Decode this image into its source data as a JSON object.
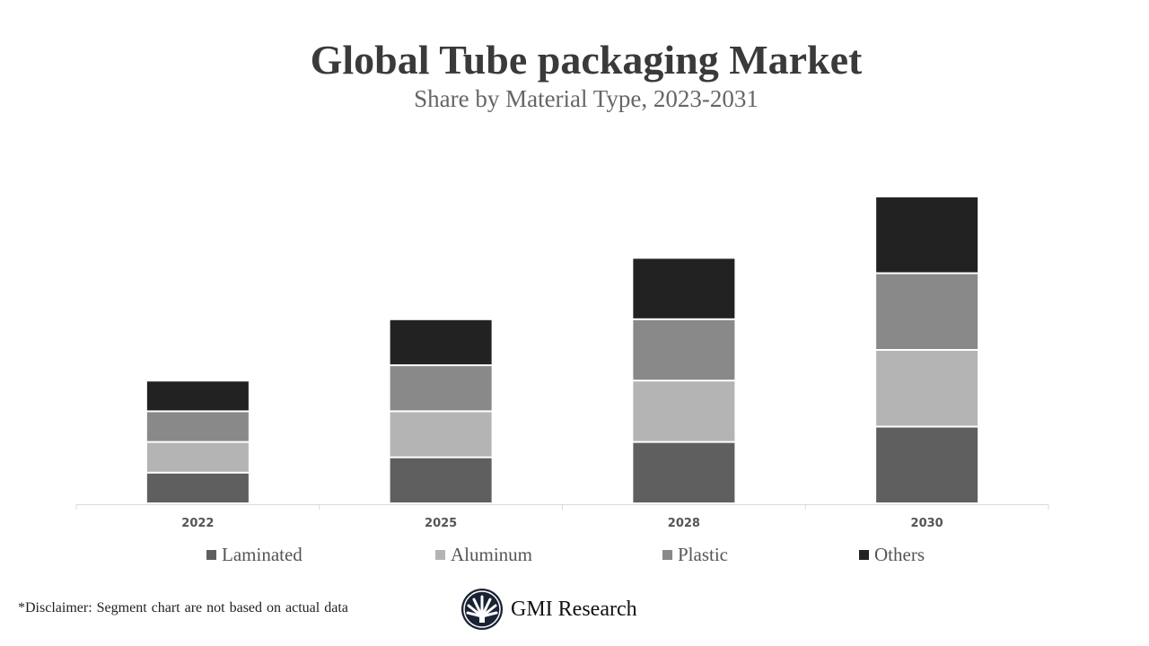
{
  "chart_data": {
    "type": "bar",
    "stacked": true,
    "title": "Global Tube packaging Market",
    "subtitle": "Share by Material Type, 2023-2031",
    "categories": [
      "2022",
      "2025",
      "2028",
      "2030"
    ],
    "series": [
      {
        "name": "Laminated",
        "values": [
          1,
          1.5,
          2,
          2.5
        ],
        "color": "#5f5f5f"
      },
      {
        "name": "Aluminum",
        "values": [
          1,
          1.5,
          2,
          2.5
        ],
        "color": "#b4b4b4"
      },
      {
        "name": "Plastic",
        "values": [
          1,
          1.5,
          2,
          2.5
        ],
        "color": "#898989"
      },
      {
        "name": "Others",
        "values": [
          1,
          1.5,
          2,
          2.5
        ],
        "color": "#222222"
      }
    ],
    "ylim": [
      0,
      10
    ],
    "xlabel": "",
    "ylabel": "",
    "grid": false,
    "legend_position": "bottom"
  },
  "disclaimer": "*Disclaimer:   Segment chart are not based on actual data",
  "brand": {
    "name": "GMI Research",
    "icon": "gmi-logo-icon"
  }
}
